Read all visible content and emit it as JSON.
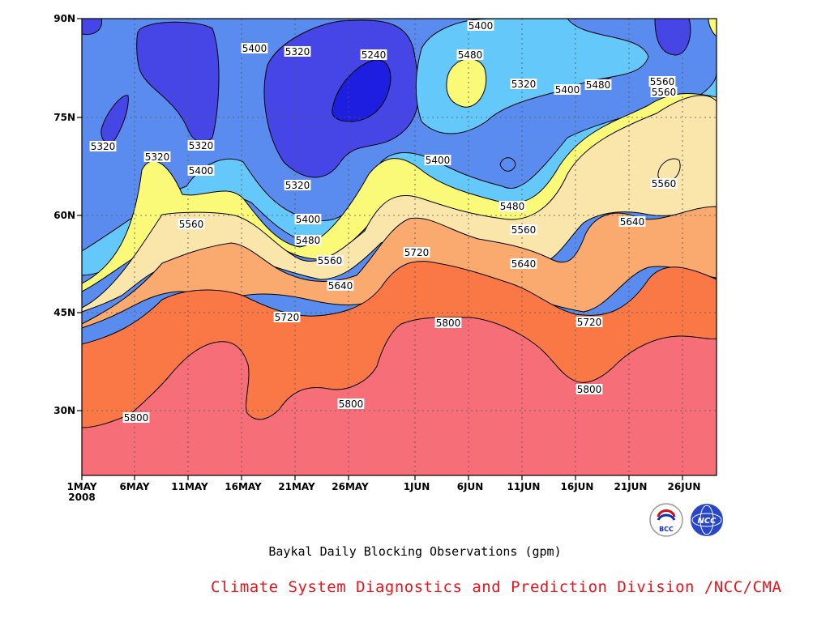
{
  "chart_data": {
    "type": "heatmap",
    "subtype": "filled-contour",
    "xlabel": "",
    "ylabel": "",
    "x_ticks": [
      "1MAY",
      "6MAY",
      "11MAY",
      "16MAY",
      "21MAY",
      "26MAY",
      "1JUN",
      "6JUN",
      "11JUN",
      "16JUN",
      "21JUN",
      "26JUN"
    ],
    "x_year_label": "2008",
    "x_range": [
      "2008-05-01",
      "2008-06-30"
    ],
    "y_ticks": [
      "30N",
      "45N",
      "60N",
      "75N",
      "90N"
    ],
    "y_range": [
      20,
      90
    ],
    "grid": "dotted",
    "contour_levels": [
      5240,
      5320,
      5400,
      5480,
      5560,
      5640,
      5720,
      5800
    ],
    "level_colors": [
      "#1e1ee0",
      "#4646e6",
      "#5a8cf0",
      "#64c8fa",
      "#fafa78",
      "#fae6aa",
      "#faaa6e",
      "#fa7846",
      "#f56e78"
    ],
    "contour_labels": [
      "5400",
      "5480",
      "5560",
      "5640",
      "5720",
      "5800",
      "5320",
      "5240",
      "5400",
      "5320",
      "5320",
      "5320",
      "5400",
      "5480",
      "5560",
      "5320",
      "5400",
      "5480",
      "5560",
      "5640",
      "5720",
      "5800",
      "5800",
      "5480",
      "5320",
      "5400",
      "5400",
      "5320",
      "5480",
      "5560",
      "5640",
      "5720",
      "5800",
      "5560",
      "5560",
      "5640",
      "5400",
      "5800"
    ],
    "series": [
      {
        "level": 5240,
        "values_lat": [
          null,
          null,
          null,
          null,
          null,
          null,
          null,
          null,
          null,
          null,
          null,
          null,
          null
        ]
      },
      {
        "level": 5320,
        "values_lat": [
          70,
          72,
          88,
          86,
          84,
          76,
          80,
          86,
          88,
          88,
          84,
          84,
          90
        ]
      },
      {
        "level": 5400,
        "values_lat": [
          52,
          56,
          64,
          64,
          62,
          58,
          66,
          72,
          70,
          68,
          78,
          80,
          80
        ]
      },
      {
        "level": 5480,
        "values_lat": [
          48,
          52,
          66,
          62,
          58,
          54,
          66,
          64,
          62,
          62,
          70,
          80,
          78
        ]
      },
      {
        "level": 5560,
        "values_lat": [
          45,
          48,
          58,
          58,
          52,
          50,
          58,
          58,
          58,
          56,
          64,
          72,
          70
        ]
      },
      {
        "level": 5640,
        "values_lat": [
          43,
          45,
          52,
          52,
          48,
          46,
          56,
          55,
          54,
          52,
          58,
          60,
          61
        ]
      },
      {
        "level": 5720,
        "values_lat": [
          40,
          42,
          48,
          48,
          45,
          46,
          52,
          52,
          48,
          44,
          45,
          51,
          50
        ]
      },
      {
        "level": 5800,
        "values_lat": [
          27,
          28,
          36,
          40,
          30,
          32,
          43,
          44,
          42,
          34,
          38,
          41,
          41
        ]
      }
    ]
  },
  "caption": "Baykal Daily Blocking Observations (gpm)",
  "credit": "Climate System Diagnostics and Prediction Division /NCC/CMA",
  "logos": {
    "left": "BCC",
    "right": "NCC"
  }
}
